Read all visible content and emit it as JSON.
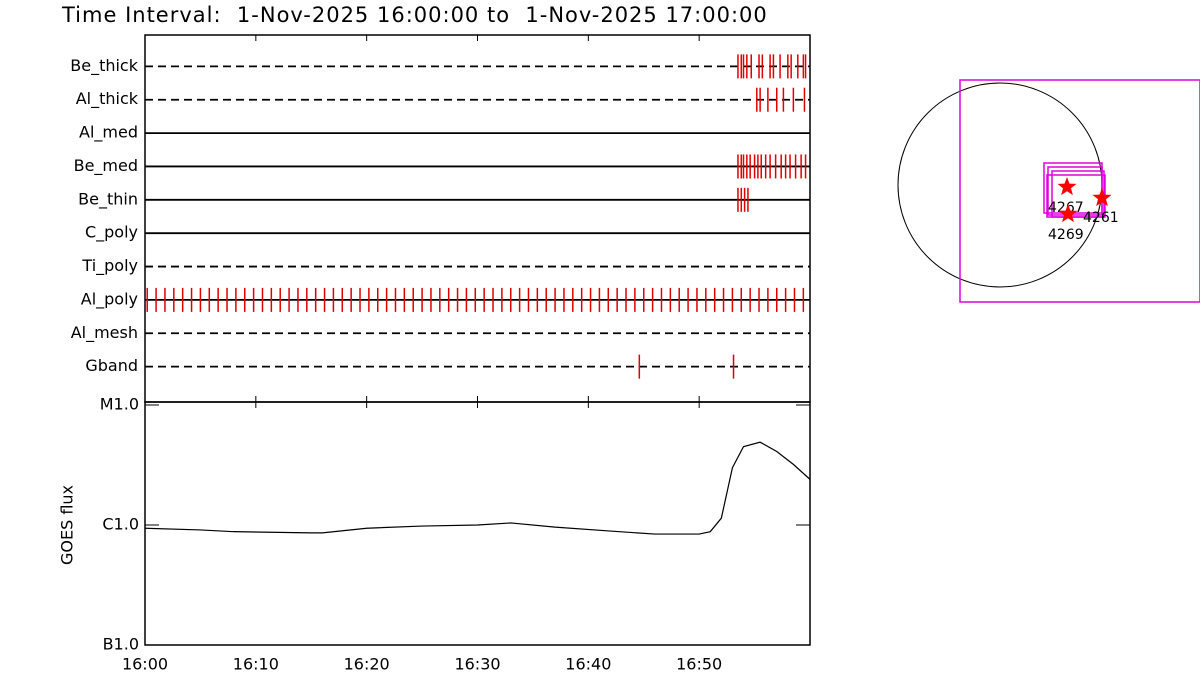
{
  "chart_data": [
    {
      "type": "event",
      "title": "Time Interval:  1-Nov-2025 16:00:00 to  1-Nov-2025 17:00:00",
      "xlim": [
        0,
        60
      ],
      "xticks": [
        {
          "value": 0,
          "label": "16:00"
        },
        {
          "value": 10,
          "label": "16:10"
        },
        {
          "value": 20,
          "label": "16:20"
        },
        {
          "value": 30,
          "label": "16:30"
        },
        {
          "value": 40,
          "label": "16:40"
        },
        {
          "value": 50,
          "label": "16:50"
        }
      ],
      "event_color": "#e00000",
      "series": [
        {
          "name": "Be_thick",
          "line": "dashed",
          "times": [
            53.5,
            53.8,
            54.0,
            54.3,
            54.7,
            55.4,
            55.7,
            56.4,
            56.7,
            57.3,
            58.0,
            58.3,
            58.9,
            59.4,
            59.6
          ]
        },
        {
          "name": "Al_thick",
          "line": "dashed",
          "times": [
            55.2,
            55.5,
            56.2,
            57.0,
            57.6,
            58.5,
            59.5
          ]
        },
        {
          "name": "Al_med",
          "line": "solid",
          "times": []
        },
        {
          "name": "Be_med",
          "line": "solid",
          "times": [
            53.5,
            53.8,
            54.0,
            54.3,
            54.6,
            55.0,
            55.3,
            55.6,
            56.0,
            56.4,
            56.9,
            57.4,
            57.8,
            58.2,
            58.7,
            59.2,
            59.6
          ]
        },
        {
          "name": "Be_thin",
          "line": "solid",
          "times": [
            53.5,
            53.8,
            54.1,
            54.4
          ]
        },
        {
          "name": "C_poly",
          "line": "solid",
          "times": []
        },
        {
          "name": "Ti_poly",
          "line": "dashed",
          "times": []
        },
        {
          "name": "Al_poly",
          "line": "solid",
          "times": [
            0.2,
            1.0,
            1.8,
            2.6,
            3.4,
            4.2,
            5.0,
            5.8,
            6.6,
            7.4,
            8.2,
            9.0,
            9.8,
            10.6,
            11.4,
            12.2,
            13.0,
            13.8,
            14.6,
            15.4,
            16.2,
            17.0,
            17.8,
            18.6,
            19.4,
            20.2,
            21.0,
            21.8,
            22.6,
            23.4,
            24.2,
            25.0,
            25.8,
            26.6,
            27.4,
            28.2,
            29.0,
            29.8,
            30.6,
            31.4,
            32.2,
            33.0,
            33.8,
            34.6,
            35.4,
            36.2,
            37.0,
            37.8,
            38.6,
            39.4,
            40.2,
            41.0,
            41.8,
            42.6,
            43.4,
            44.2,
            45.0,
            45.8,
            46.6,
            47.4,
            48.2,
            49.0,
            49.8,
            50.6,
            51.4,
            52.2,
            53.0,
            53.8,
            54.6,
            55.4,
            56.2,
            57.0,
            57.8,
            58.6,
            59.4
          ]
        },
        {
          "name": "Al_mesh",
          "line": "dashed",
          "times": []
        },
        {
          "name": "Gband",
          "line": "dashed",
          "times": [
            44.6,
            53.1
          ]
        }
      ]
    },
    {
      "type": "line",
      "ylabel": "GOES flux",
      "log": true,
      "color": "#000000",
      "xlim": [
        0,
        60
      ],
      "ylim": [
        1e-07,
        1e-05
      ],
      "yticks": [
        {
          "value": 1e-07,
          "label": "B1.0"
        },
        {
          "value": 1e-06,
          "label": "C1.0"
        },
        {
          "value": 1e-05,
          "label": "M1.0"
        }
      ],
      "x": [
        0,
        5,
        8,
        15,
        16,
        20,
        25,
        30,
        33,
        37,
        42,
        46,
        50,
        51,
        52,
        53,
        54,
        55.5,
        57,
        58.5,
        60
      ],
      "values": [
        9.4e-07,
        9.1e-07,
        8.8e-07,
        8.6e-07,
        8.6e-07,
        9.4e-07,
        9.8e-07,
        1e-06,
        1.04e-06,
        9.6e-07,
        8.9e-07,
        8.4e-07,
        8.4e-07,
        8.8e-07,
        1.14e-06,
        3e-06,
        4.5e-06,
        4.9e-06,
        4.1e-06,
        3.2e-06,
        2.4e-06
      ]
    },
    {
      "type": "map",
      "box_color": "#e000e0",
      "star_color": "#ff0000",
      "regions": [
        {
          "label": "4267"
        },
        {
          "label": "4261"
        },
        {
          "label": "4269"
        }
      ]
    }
  ]
}
